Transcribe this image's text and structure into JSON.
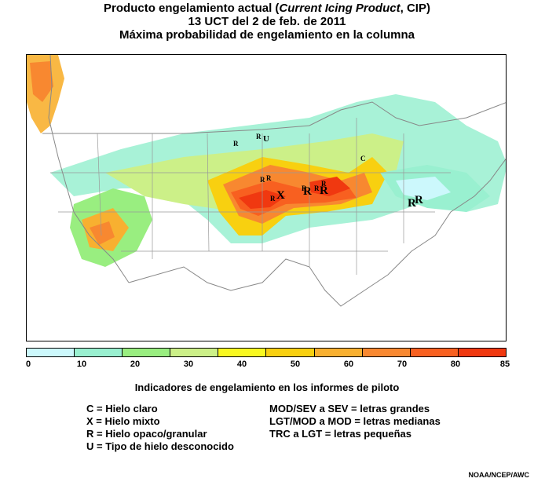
{
  "title": {
    "line1_pre": "Producto engelamiento actual (",
    "line1_em1": "Current Icing Product",
    "line1_post": ", CIP)",
    "line2": "13 UCT del 2 de feb. de 2011",
    "line3": "Máxima probabilidad de engelamiento en la columna"
  },
  "colorbar": {
    "ticks": [
      "0",
      "10",
      "20",
      "30",
      "40",
      "50",
      "60",
      "70",
      "80",
      "85"
    ],
    "colors": [
      "#ccf8fc",
      "#99f0d0",
      "#99ee80",
      "#ccf088",
      "#f8f820",
      "#f8d010",
      "#f8b030",
      "#f88830",
      "#f86020",
      "#f03810"
    ]
  },
  "legend": {
    "title": "Indicadores de engelamiento en los informes de piloto",
    "left": [
      "C = Hielo claro",
      "X = Hielo mixto",
      "R = Hielo opaco/granular",
      "U = Tipo de hielo desconocido"
    ],
    "right": [
      "MOD/SEV a SEV = letras grandes",
      "LGT/MOD a MOD = letras medianas",
      "TRC a LGT = letras pequeñas"
    ]
  },
  "pireps": [
    {
      "label": "R",
      "size": "small"
    },
    {
      "label": "R",
      "size": "small"
    },
    {
      "label": "U",
      "size": "medium"
    },
    {
      "label": "C",
      "size": "small"
    },
    {
      "label": "R",
      "size": "small"
    },
    {
      "label": "R",
      "size": "small"
    },
    {
      "label": "R",
      "size": "small"
    },
    {
      "label": "X",
      "size": "large"
    },
    {
      "label": "R",
      "size": "large"
    },
    {
      "label": "R",
      "size": "large"
    },
    {
      "label": "R",
      "size": "small"
    },
    {
      "label": "R",
      "size": "small"
    },
    {
      "label": "R",
      "size": "large"
    },
    {
      "label": "R",
      "size": "large"
    },
    {
      "label": "R",
      "size": "small"
    }
  ],
  "credit": "NOAA/NCEP/AWC"
}
